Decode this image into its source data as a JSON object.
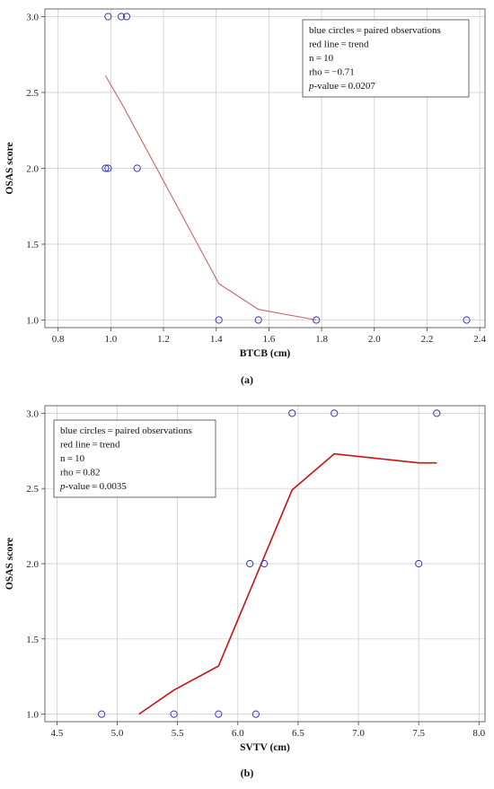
{
  "panels": [
    {
      "label": "(a)",
      "legend": {
        "lines": [
          "blue circles = paired observations",
          "red line = trend",
          "n = 10",
          "rho = −0.71"
        ],
        "p_label": "p",
        "p_value_text": "-value = 0.0207"
      },
      "colors": {
        "points": "#3535b8",
        "trend": "#c86464"
      },
      "chart_data": {
        "type": "scatter",
        "xlabel": "BTCB (cm)",
        "ylabel": "OSAS score",
        "xlim": [
          0.75,
          2.42
        ],
        "ylim": [
          0.95,
          3.05
        ],
        "x_ticks": [
          "0.8",
          "1.0",
          "1.2",
          "1.4",
          "1.6",
          "1.8",
          "2.0",
          "2.2",
          "2.4"
        ],
        "y_ticks": [
          "1.0",
          "1.5",
          "2.0",
          "2.5",
          "3.0"
        ],
        "grid": true,
        "legend_position": "top-right",
        "points": [
          {
            "x": 0.99,
            "y": 3.0
          },
          {
            "x": 1.04,
            "y": 3.0
          },
          {
            "x": 1.06,
            "y": 3.0
          },
          {
            "x": 0.98,
            "y": 2.0
          },
          {
            "x": 0.99,
            "y": 2.0
          },
          {
            "x": 1.1,
            "y": 2.0
          },
          {
            "x": 1.41,
            "y": 1.0
          },
          {
            "x": 1.56,
            "y": 1.0
          },
          {
            "x": 1.78,
            "y": 1.0
          },
          {
            "x": 2.35,
            "y": 1.0
          }
        ],
        "trend": [
          {
            "x": 0.98,
            "y": 2.61
          },
          {
            "x": 1.05,
            "y": 2.4
          },
          {
            "x": 1.41,
            "y": 1.24
          },
          {
            "x": 1.56,
            "y": 1.07
          },
          {
            "x": 1.78,
            "y": 1.0
          }
        ]
      }
    },
    {
      "label": "(b)",
      "legend": {
        "lines": [
          "blue circles = paired observations",
          "red line = trend",
          "n = 10",
          "rho = 0.82"
        ],
        "p_label": "p",
        "p_value_text": "-value = 0.0035"
      },
      "colors": {
        "points": "#3535b8",
        "trend": "#c41414"
      },
      "chart_data": {
        "type": "scatter",
        "xlabel": "SVTV (cm)",
        "ylabel": "OSAS score",
        "xlim": [
          4.4,
          8.05
        ],
        "ylim": [
          0.95,
          3.05
        ],
        "x_ticks": [
          "4.5",
          "5.0",
          "5.5",
          "6.0",
          "6.5",
          "7.0",
          "7.5",
          "8.0"
        ],
        "y_ticks": [
          "1.0",
          "1.5",
          "2.0",
          "2.5",
          "3.0"
        ],
        "grid": true,
        "legend_position": "top-left",
        "points": [
          {
            "x": 6.45,
            "y": 3.0
          },
          {
            "x": 6.8,
            "y": 3.0
          },
          {
            "x": 7.65,
            "y": 3.0
          },
          {
            "x": 6.1,
            "y": 2.0
          },
          {
            "x": 6.22,
            "y": 2.0
          },
          {
            "x": 7.5,
            "y": 2.0
          },
          {
            "x": 4.87,
            "y": 1.0
          },
          {
            "x": 5.47,
            "y": 1.0
          },
          {
            "x": 5.84,
            "y": 1.0
          },
          {
            "x": 6.15,
            "y": 1.0
          }
        ],
        "trend": [
          {
            "x": 5.18,
            "y": 1.0
          },
          {
            "x": 5.47,
            "y": 1.16
          },
          {
            "x": 5.84,
            "y": 1.32
          },
          {
            "x": 6.45,
            "y": 2.49
          },
          {
            "x": 6.8,
            "y": 2.73
          },
          {
            "x": 7.5,
            "y": 2.67
          },
          {
            "x": 7.65,
            "y": 2.67
          }
        ]
      }
    }
  ]
}
